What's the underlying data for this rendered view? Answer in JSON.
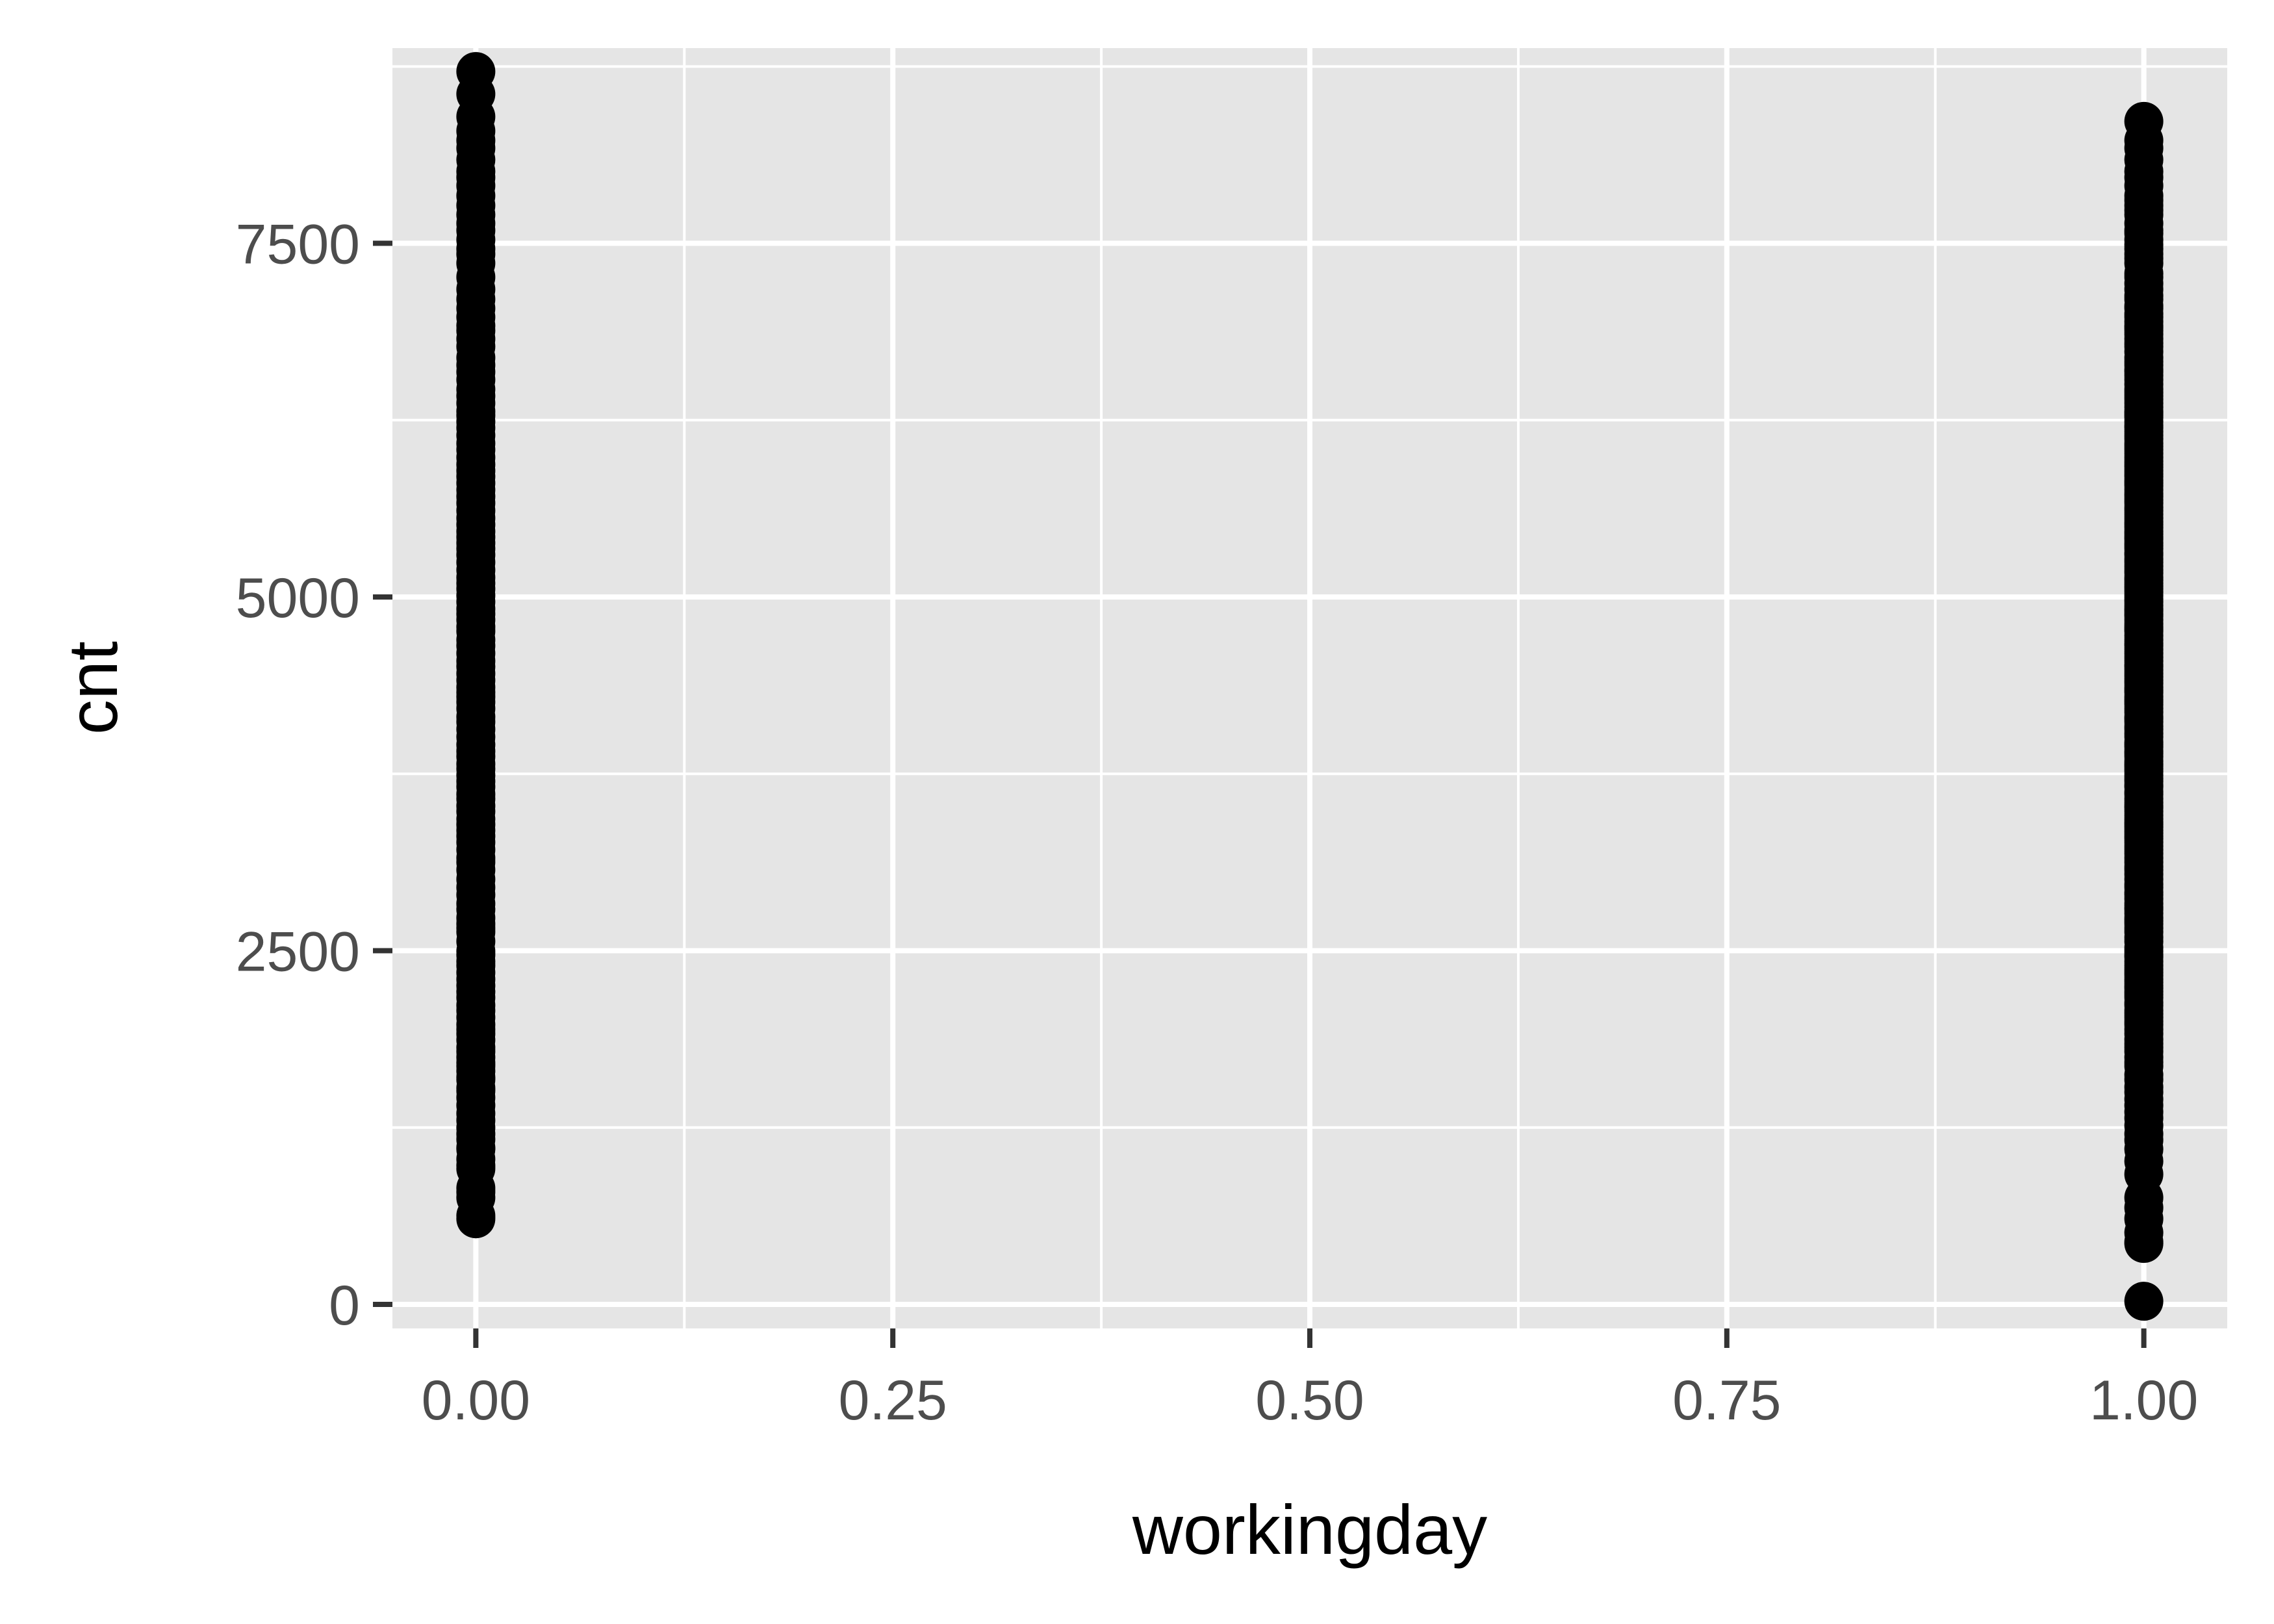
{
  "chart_data": {
    "type": "scatter",
    "title": "",
    "xlabel": "workingday",
    "ylabel": "cnt",
    "xlim": [
      -0.05,
      1.05
    ],
    "ylim": [
      -170,
      8880
    ],
    "grid": true,
    "x_ticks": [
      0,
      0.25,
      0.5,
      0.75,
      1
    ],
    "x_tick_labels": [
      "0.00",
      "0.25",
      "0.50",
      "0.75",
      "1.00"
    ],
    "y_ticks": [
      0,
      2500,
      5000,
      7500
    ],
    "y_tick_labels": [
      "0",
      "2500",
      "5000",
      "7500"
    ],
    "point_color": "#000000",
    "panel_color": "#e5e5e5",
    "series": [
      {
        "x": 0,
        "values": [
          605,
          627,
          754,
          795,
          822,
          959,
          981,
          1027,
          1096,
          1107,
          1167,
          1204,
          1248,
          1301,
          1349,
          1406,
          1462,
          1510,
          1529,
          1589,
          1606,
          1650,
          1685,
          1708,
          1746,
          1787,
          1815,
          1869,
          1913,
          1944,
          1977,
          2028,
          2077,
          2114,
          2169,
          2210,
          2252,
          2298,
          2345,
          2395,
          2424,
          2471,
          2496,
          2566,
          2633,
          2660,
          2690,
          2732,
          2792,
          2832,
          2895,
          2947,
          3005,
          3071,
          3126,
          3155,
          3214,
          3267,
          3310,
          3351,
          3392,
          3429,
          3485,
          3523,
          3574,
          3606,
          3659,
          3697,
          3740,
          3786,
          3820,
          3873,
          3910,
          3956,
          4010,
          4066,
          4118,
          4153,
          4212,
          4258,
          4294,
          4326,
          4362,
          4411,
          4459,
          4509,
          4548,
          4602,
          4656,
          4697,
          4758,
          4788,
          4839,
          4881,
          4916,
          4966,
          5010,
          5058,
          5099,
          5138,
          5191,
          5245,
          5298,
          5342,
          5382,
          5423,
          5463,
          5511,
          5558,
          5611,
          5664,
          5710,
          5756,
          5805,
          5851,
          5892,
          5937,
          5986,
          6041,
          6086,
          6142,
          6196,
          6239,
          6283,
          6312,
          6370,
          6421,
          6468,
          6536,
          6591,
          6639,
          6691,
          6770,
          6824,
          6883,
          6917,
          6978,
          7040,
          7105,
          7175,
          7261,
          7359,
          7424,
          7460,
          7525,
          7591,
          7641,
          7702,
          7767,
          7836,
          7907,
          7965,
          8009,
          8090,
          8173,
          8227,
          8294,
          8395,
          8555,
          8714
        ]
      },
      {
        "x": 1,
        "values": [
          22,
          431,
          441,
          506,
          605,
          683,
          754,
          920,
          1013,
          1096,
          1162,
          1204,
          1263,
          1317,
          1360,
          1406,
          1450,
          1501,
          1536,
          1589,
          1623,
          1685,
          1712,
          1746,
          1787,
          1815,
          1842,
          1872,
          1913,
          1944,
          1977,
          2000,
          2028,
          2053,
          2077,
          2114,
          2133,
          2169,
          2190,
          2210,
          2236,
          2252,
          2277,
          2298,
          2325,
          2345,
          2368,
          2395,
          2424,
          2455,
          2471,
          2496,
          2521,
          2566,
          2594,
          2633,
          2660,
          2690,
          2710,
          2732,
          2765,
          2792,
          2808,
          2832,
          2866,
          2895,
          2913,
          2947,
          2969,
          3005,
          3040,
          3071,
          3093,
          3126,
          3155,
          3187,
          3214,
          3239,
          3267,
          3292,
          3310,
          3331,
          3351,
          3372,
          3392,
          3409,
          3429,
          3456,
          3485,
          3510,
          3523,
          3547,
          3574,
          3606,
          3623,
          3659,
          3669,
          3697,
          3717,
          3740,
          3767,
          3786,
          3805,
          3820,
          3840,
          3873,
          3894,
          3910,
          3940,
          3956,
          3974,
          4010,
          4035,
          4066,
          4086,
          4118,
          4138,
          4153,
          4186,
          4212,
          4240,
          4258,
          4274,
          4294,
          4326,
          4342,
          4362,
          4390,
          4411,
          4436,
          4459,
          4484,
          4509,
          4521,
          4548,
          4575,
          4602,
          4629,
          4656,
          4672,
          4697,
          4727,
          4758,
          4773,
          4788,
          4810,
          4839,
          4866,
          4881,
          4902,
          4916,
          4940,
          4966,
          4985,
          5010,
          5035,
          5058,
          5077,
          5099,
          5119,
          5138,
          5169,
          5191,
          5217,
          5245,
          5267,
          5298,
          5312,
          5342,
          5362,
          5382,
          5409,
          5423,
          5445,
          5463,
          5490,
          5511,
          5531,
          5558,
          5585,
          5611,
          5633,
          5664,
          5686,
          5710,
          5730,
          5756,
          5786,
          5805,
          5823,
          5851,
          5870,
          5892,
          5918,
          5937,
          5960,
          5986,
          6015,
          6041,
          6064,
          6086,
          6118,
          6142,
          6169,
          6196,
          6211,
          6239,
          6269,
          6283,
          6299,
          6312,
          6340,
          6370,
          6398,
          6421,
          6445,
          6468,
          6503,
          6536,
          6565,
          6591,
          6606,
          6639,
          6664,
          6691,
          6734,
          6770,
          6794,
          6824,
          6857,
          6883,
          6904,
          6917,
          6946,
          6978,
          7001,
          7040,
          7058,
          7105,
          7129,
          7175,
          7216,
          7261,
          7286,
          7359,
          7393,
          7424,
          7460,
          7490,
          7525,
          7570,
          7591,
          7641,
          7702,
          7733,
          7767,
          7804,
          7836,
          7907,
          7965,
          8009,
          8090,
          8173,
          8227,
          8362
        ]
      }
    ]
  }
}
